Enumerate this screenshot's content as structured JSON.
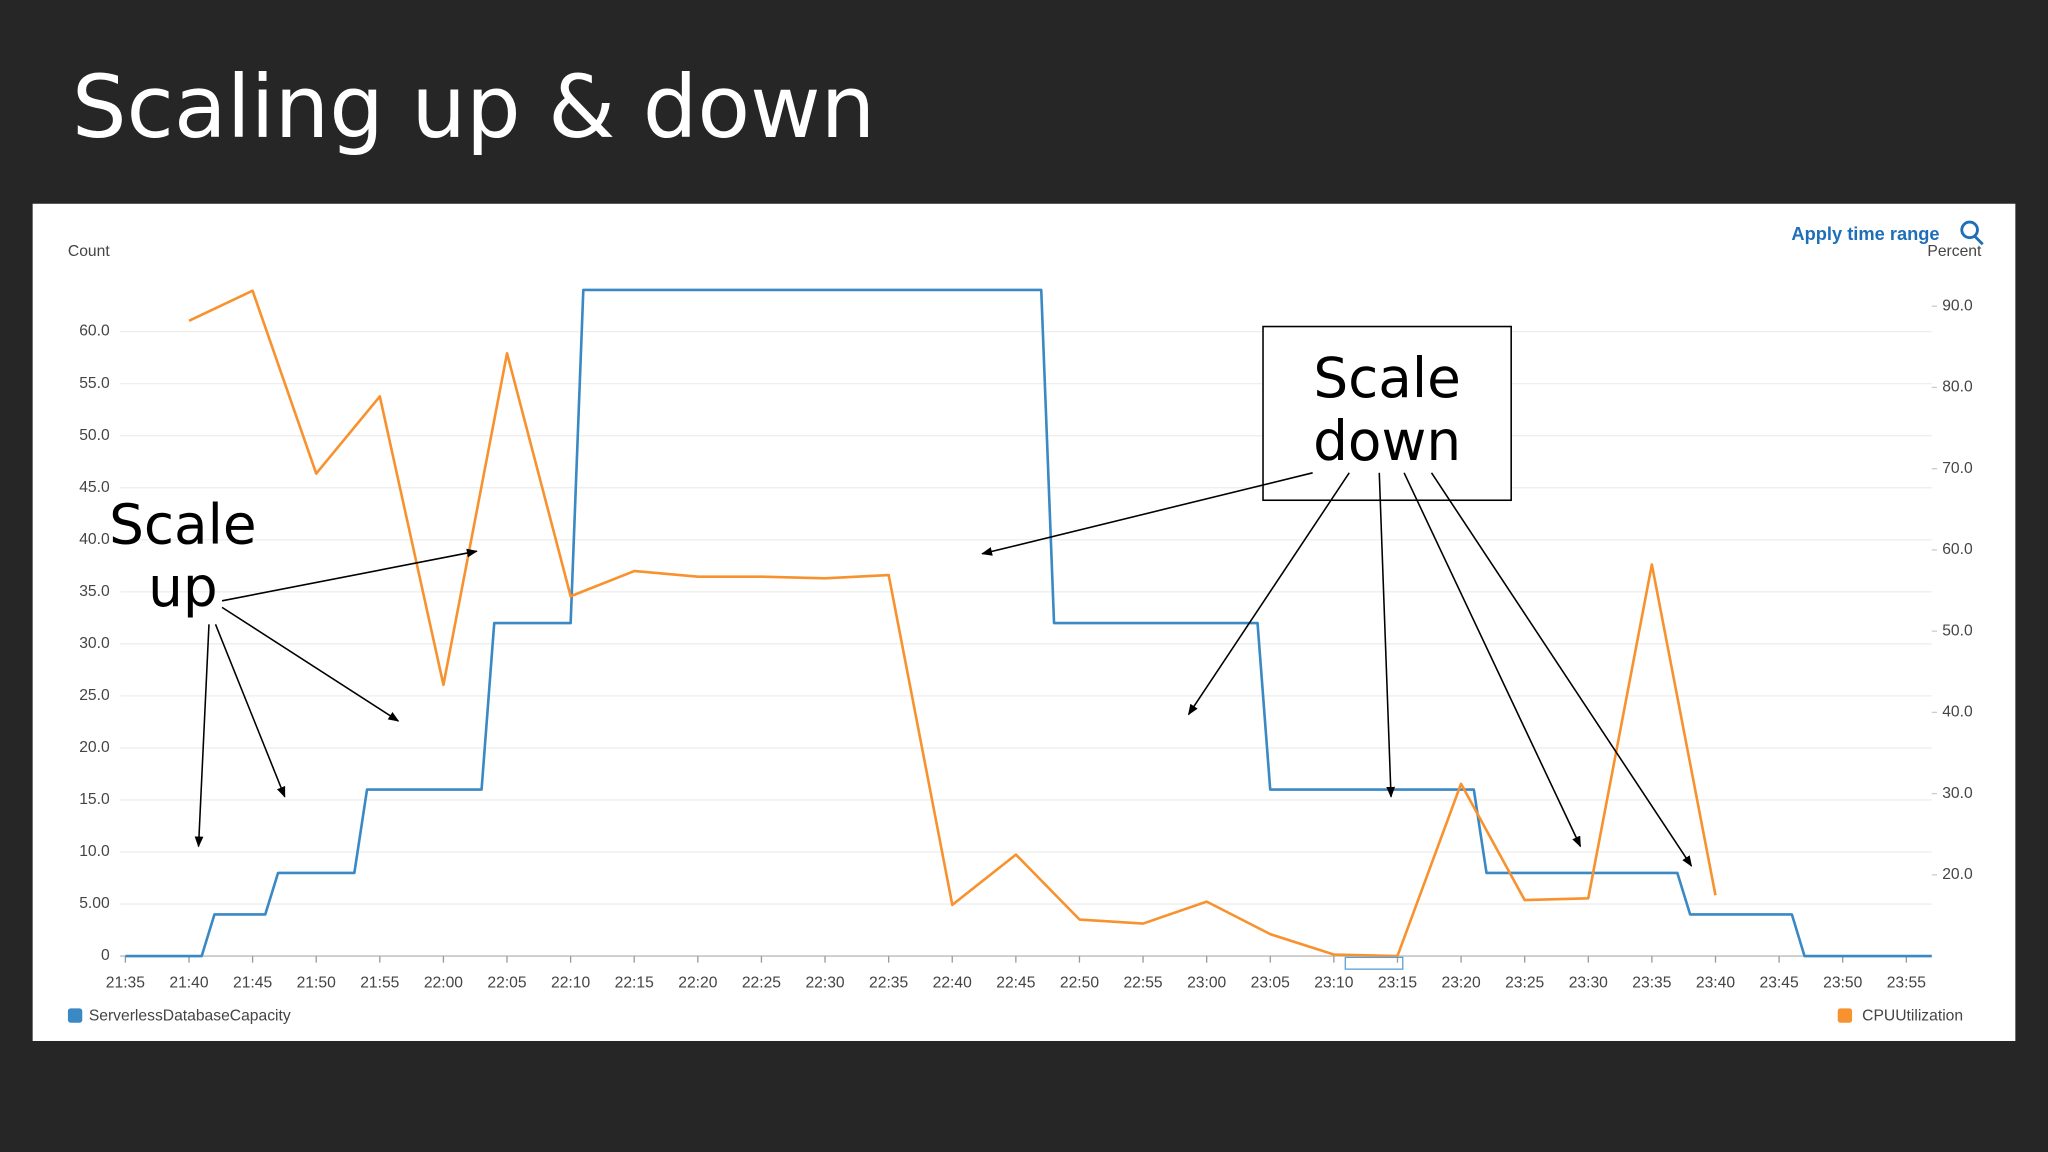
{
  "chart_data": {
    "type": "line",
    "title": "Scaling up & down",
    "y_label": "Count",
    "y2_label": "Percent",
    "action": "Apply time range",
    "xlim": [
      "21:35",
      "23:57"
    ],
    "xticks": [
      "21:35",
      "21:40",
      "21:45",
      "21:50",
      "21:55",
      "22:00",
      "22:05",
      "22:10",
      "22:15",
      "22:20",
      "22:25",
      "22:30",
      "22:35",
      "22:40",
      "22:45",
      "22:50",
      "22:55",
      "23:00",
      "23:05",
      "23:10",
      "23:15",
      "23:20",
      "23:25",
      "23:30",
      "23:35",
      "23:40",
      "23:45",
      "23:50",
      "23:55"
    ],
    "ylim": [
      0,
      64
    ],
    "yticks": [
      0,
      {
        "value": 5,
        "label": "5.00"
      },
      {
        "value": 10,
        "label": "10.0"
      },
      {
        "value": 15,
        "label": "15.0"
      },
      {
        "value": 20,
        "label": "20.0"
      },
      {
        "value": 25,
        "label": "25.0"
      },
      {
        "value": 30,
        "label": "30.0"
      },
      {
        "value": 35,
        "label": "35.0"
      },
      {
        "value": 40,
        "label": "40.0"
      },
      {
        "value": 45,
        "label": "45.0"
      },
      {
        "value": 50,
        "label": "50.0"
      },
      {
        "value": 55,
        "label": "55.0"
      },
      {
        "value": 60,
        "label": "60.0"
      }
    ],
    "y2lim": [
      10,
      92
    ],
    "y2ticks": [
      {
        "value": 20,
        "label": "20.0"
      },
      {
        "value": 30,
        "label": "30.0"
      },
      {
        "value": 40,
        "label": "40.0"
      },
      {
        "value": 50,
        "label": "50.0"
      },
      {
        "value": 60,
        "label": "60.0"
      },
      {
        "value": 70,
        "label": "70.0"
      },
      {
        "value": 80,
        "label": "80.0"
      },
      {
        "value": 90,
        "label": "90.0"
      }
    ],
    "grid": true,
    "series": [
      {
        "name": "ServerlessDatabaseCapacity",
        "color": "#3a88c4",
        "x": [
          "21:35",
          "21:41",
          "21:42",
          "21:46",
          "21:47",
          "21:53",
          "21:54",
          "22:03",
          "22:04",
          "22:10",
          "22:11",
          "22:47",
          "22:48",
          "23:04",
          "23:05",
          "23:21",
          "23:22",
          "23:37",
          "23:38",
          "23:46",
          "23:47",
          "23:57"
        ],
        "values": [
          0,
          0,
          4,
          4,
          8,
          8,
          16,
          16,
          32,
          32,
          64,
          64,
          32,
          32,
          16,
          16,
          8,
          8,
          4,
          4,
          0,
          0
        ]
      },
      {
        "name": "CPUUtilization",
        "color": "#f7922e",
        "axis": "y2",
        "x": [
          "21:40",
          "21:45",
          "21:50",
          "21:55",
          "22:00",
          "22:05",
          "22:10",
          "22:15",
          "22:20",
          "22:25",
          "22:30",
          "22:35",
          "22:40",
          "22:45",
          "22:50",
          "22:55",
          "23:00",
          "23:05",
          "23:10",
          "23:15",
          "23:20",
          "23:25",
          "23:30",
          "23:35",
          "23:40"
        ],
        "values": [
          88.2,
          91.9,
          69.4,
          78.9,
          43.4,
          84.2,
          54.3,
          57.4,
          56.7,
          56.7,
          56.5,
          56.9,
          16.3,
          22.5,
          14.5,
          14.0,
          16.7,
          12.7,
          10.2,
          10.0,
          31.2,
          16.9,
          17.1,
          58.2,
          17.5
        ]
      }
    ],
    "annotations": [
      {
        "lines": [
          "Scale",
          "up"
        ]
      },
      {
        "lines": [
          "Scale",
          "down"
        ]
      }
    ]
  }
}
